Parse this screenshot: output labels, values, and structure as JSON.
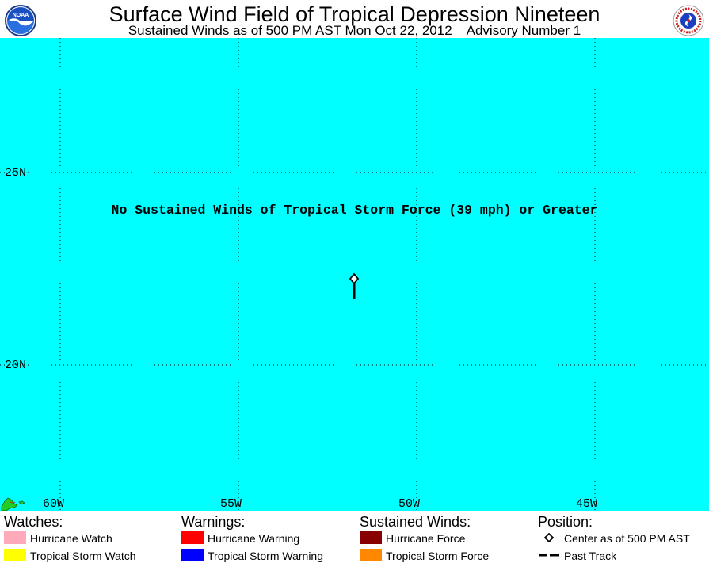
{
  "header": {
    "title": "Surface Wind Field of Tropical Depression Nineteen",
    "subtitle": "Sustained Winds as of 500 PM AST Mon Oct 22, 2012    Advisory Number 1",
    "left_logo_icon": "noaa-logo-icon",
    "right_logo_icon": "nws-logo-icon"
  },
  "map": {
    "notice": "No Sustained Winds of Tropical Storm Force (39 mph) or Greater",
    "ocean_color": "#00ffff",
    "land_color": "#22cc22",
    "lat_labels": [
      "25N",
      "20N"
    ],
    "lon_labels": [
      "60W",
      "55W",
      "50W",
      "45W"
    ],
    "gridlines": "dotted",
    "storm_center": {
      "lat": 22.2,
      "lon": 51.9
    }
  },
  "legend": {
    "watches": {
      "heading": "Watches:",
      "items": [
        {
          "label": "Hurricane Watch",
          "color": "#ffaabb"
        },
        {
          "label": "Tropical Storm Watch",
          "color": "#ffff00"
        }
      ]
    },
    "warnings": {
      "heading": "Warnings:",
      "items": [
        {
          "label": "Hurricane Warning",
          "color": "#ff0000"
        },
        {
          "label": "Tropical Storm Warning",
          "color": "#0000ff"
        }
      ]
    },
    "sustained_winds": {
      "heading": "Sustained Winds:",
      "items": [
        {
          "label": "Hurricane Force",
          "color": "#880000"
        },
        {
          "label": "Tropical Storm Force",
          "color": "#ff8800"
        }
      ]
    },
    "position": {
      "heading": "Position:",
      "center_label": "Center as of 500 PM AST",
      "track_label": "Past Track"
    }
  }
}
